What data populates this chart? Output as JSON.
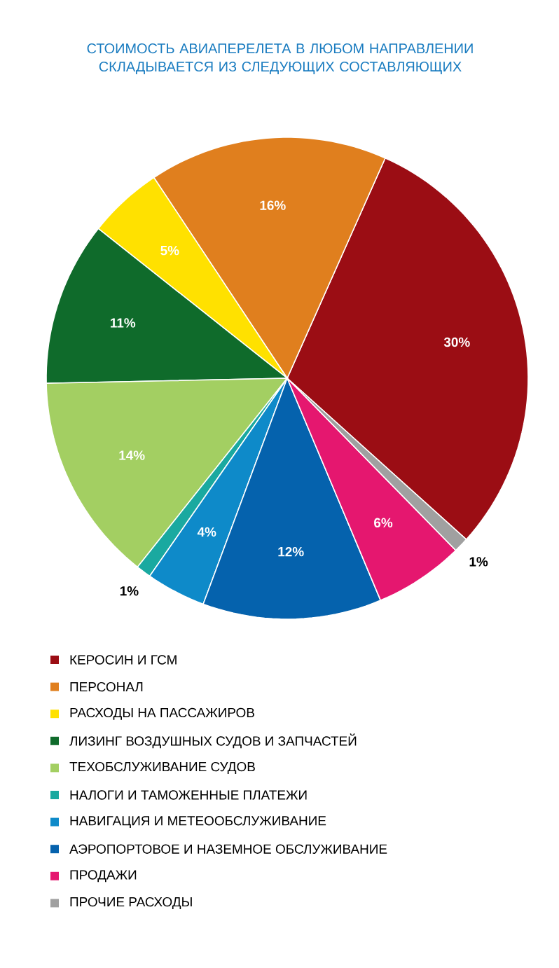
{
  "chart_data": {
    "type": "pie",
    "title": "СТОИМОСТЬ АВИАПЕРЕЛЕТА В ЛЮБОМ НАПРАВЛЕНИИ СКЛАДЫВАЕТСЯ ИЗ СЛЕДУЮЩИХ СОСТАВЛЯЮЩИХ",
    "categories": [
      "КЕРОСИН И ГСМ",
      "ПЕРСОНАЛ",
      "РАСХОДЫ НА ПАССАЖИРОВ",
      "ЛИЗИНГ ВОЗДУШНЫХ СУДОВ И ЗАПЧАСТЕЙ",
      "ТЕХОБСЛУЖИВАНИЕ СУДОВ",
      "НАЛОГИ И ТАМОЖЕННЫЕ ПЛАТЕЖИ",
      "НАВИГАЦИЯ И МЕТЕООБСЛУЖИВАНИЕ",
      "АЭРОПОРТОВОЕ И НАЗЕМНОЕ ОБСЛУЖИВАНИЕ",
      "ПРОДАЖИ",
      "ПРОЧИЕ РАСХОДЫ"
    ],
    "values": [
      30,
      16,
      5,
      11,
      14,
      1,
      4,
      12,
      6,
      1
    ],
    "value_labels": [
      "30%",
      "16%",
      "5%",
      "11%",
      "14%",
      "1%",
      "4%",
      "12%",
      "6%",
      "1%"
    ],
    "colors": [
      "#9b0d14",
      "#e07f1e",
      "#ffe100",
      "#0f6b2b",
      "#a3cf62",
      "#1aa9a0",
      "#0e8ac9",
      "#0562ad",
      "#e5176f",
      "#a0a0a0"
    ],
    "legend": "bottom"
  }
}
